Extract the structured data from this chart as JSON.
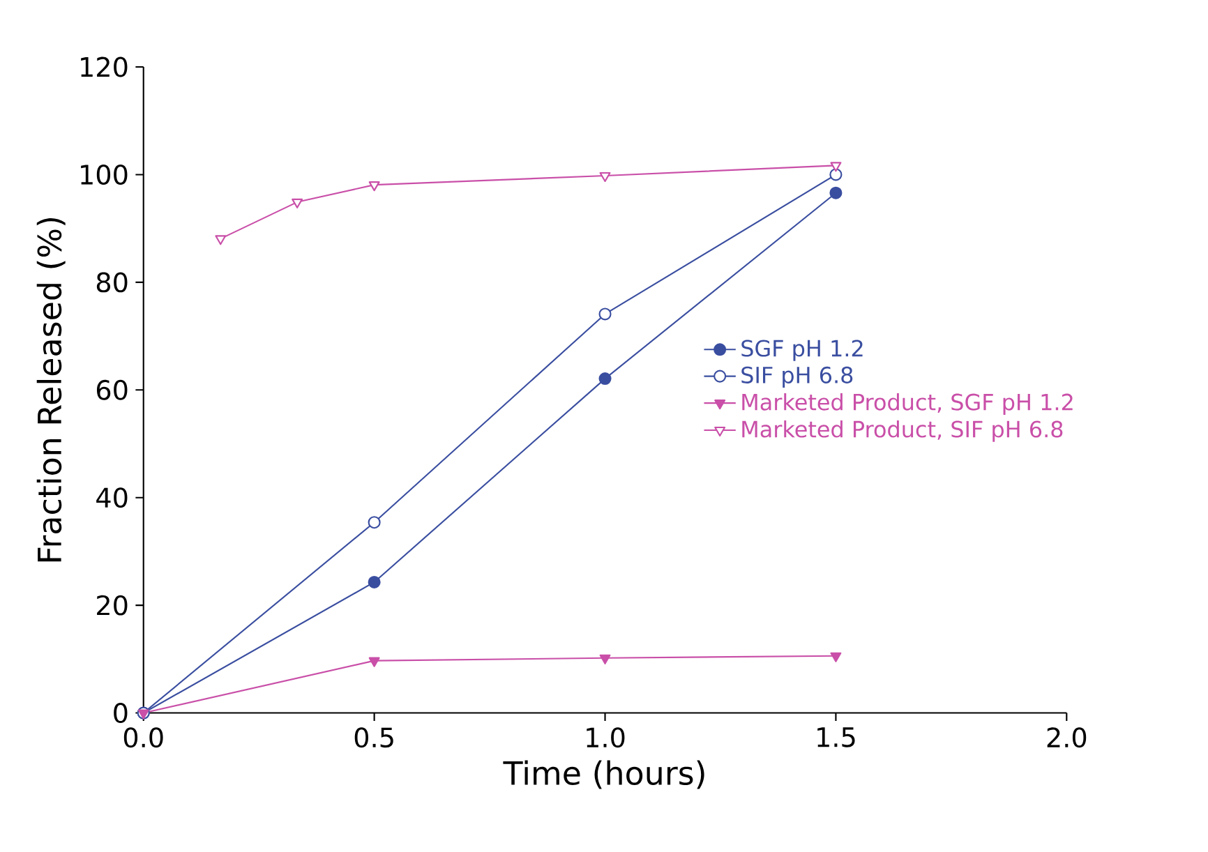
{
  "chart_data": {
    "type": "line",
    "xlabel": "Time (hours)",
    "ylabel": "Fraction Released (%)",
    "xlim": [
      0,
      2
    ],
    "xticks": [
      {
        "value": 0,
        "label": "0.0"
      },
      {
        "value": 0.5,
        "label": "0.5"
      },
      {
        "value": 1,
        "label": "1.0"
      },
      {
        "value": 1.5,
        "label": "1.5"
      },
      {
        "value": 2,
        "label": "2.0"
      }
    ],
    "ylim": [
      0,
      120
    ],
    "yticks": [
      0,
      20,
      40,
      60,
      80,
      100,
      120
    ],
    "grid": false,
    "legend": "right",
    "series": [
      {
        "name": "SGF pH 1.2",
        "color": "#3a4ea0",
        "marker": "circle",
        "x": [
          0,
          0.5,
          1,
          1.5
        ],
        "values": [
          0,
          24.3,
          62.1,
          96.6
        ]
      },
      {
        "name": "SIF pH 6.8",
        "color": "#3a4ea0",
        "marker": "circle",
        "x": [
          0,
          0.5,
          1,
          1.5
        ],
        "values": [
          0,
          35.4,
          74.1,
          100
        ]
      },
      {
        "name": "Marketed Product, SGF pH 1.2",
        "color": "#c94fa8",
        "marker": "triangle",
        "x": [
          0,
          0.5,
          1,
          1.5
        ],
        "values": [
          0,
          9.7,
          10.2,
          10.6
        ]
      },
      {
        "name": "Marketed Product, SIF pH 6.8",
        "color": "#c94fa8",
        "marker": "triangle",
        "x": [
          0.167,
          0.333,
          0.5,
          1,
          1.5
        ],
        "values": [
          88.1,
          94.9,
          98.1,
          99.8,
          101.7
        ]
      }
    ]
  }
}
